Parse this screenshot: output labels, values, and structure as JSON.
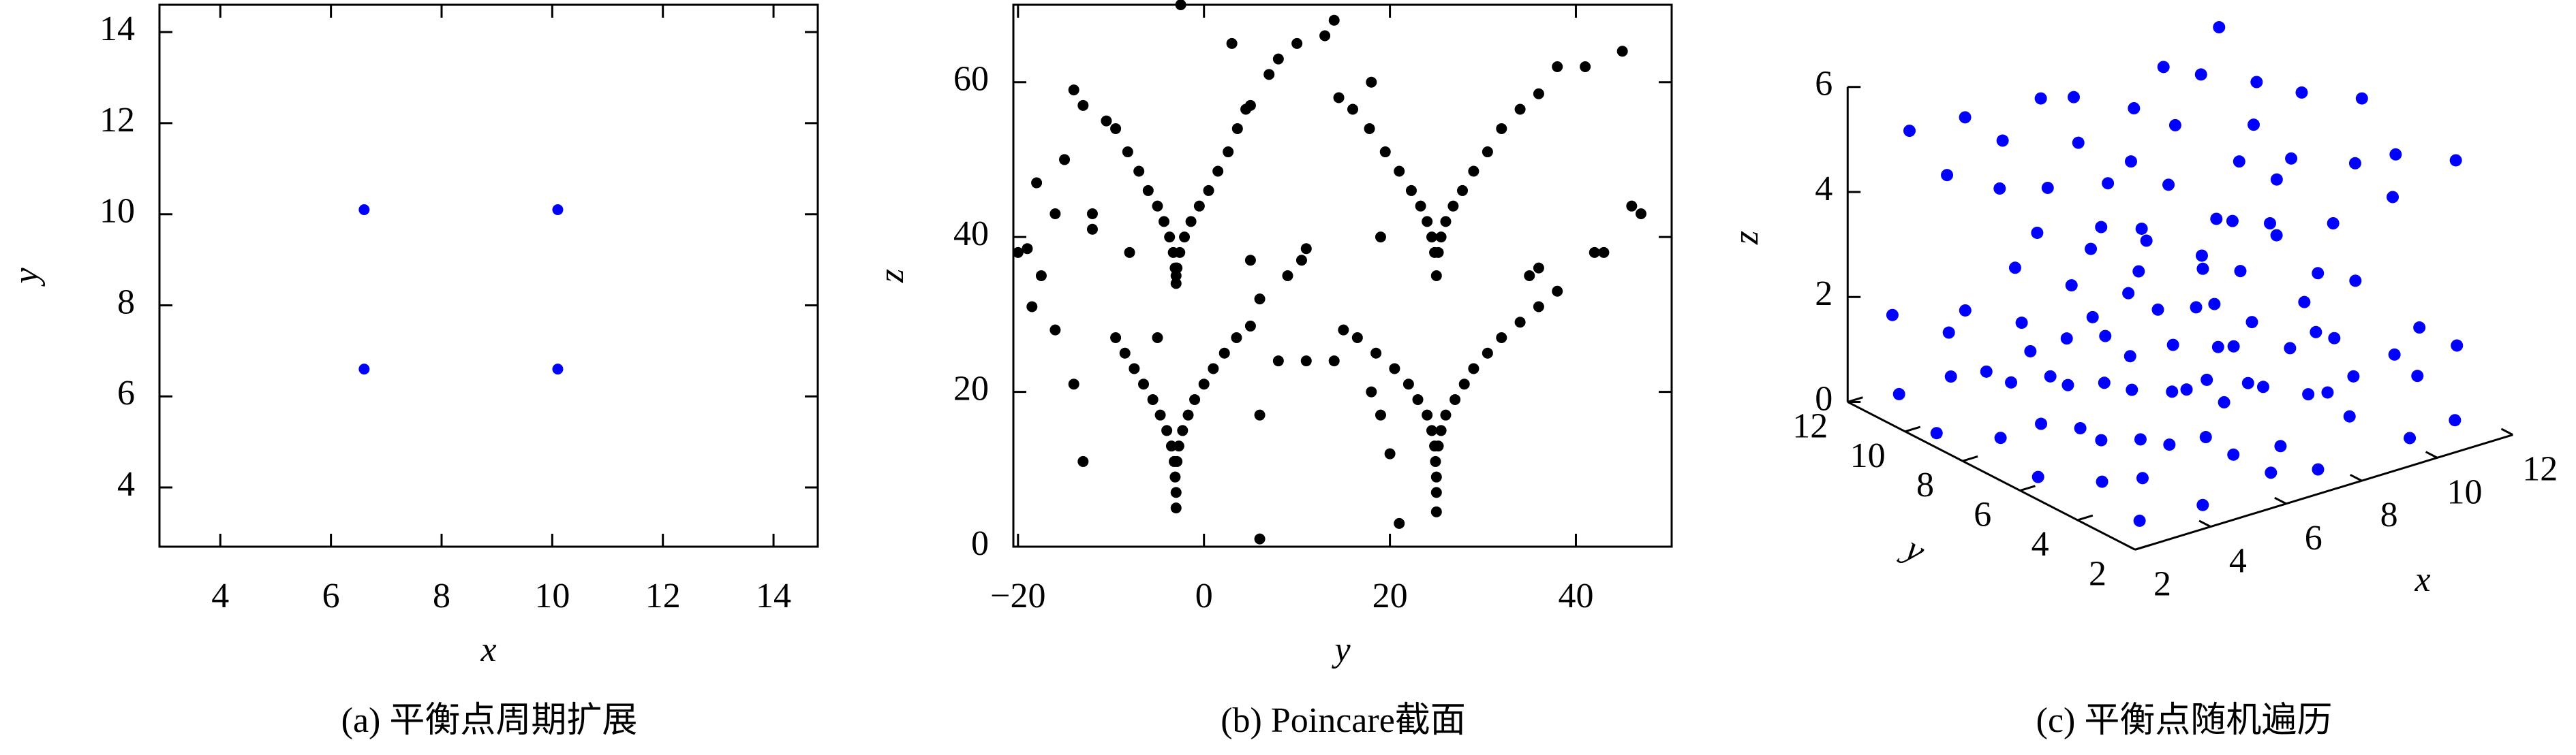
{
  "chart_data": [
    {
      "type": "scatter",
      "caption": "(a) 平衡点周期扩展",
      "xlabel": "x",
      "ylabel": "y",
      "color": "#0000ff",
      "x": [
        6.6,
        10.1,
        6.6,
        10.1
      ],
      "y": [
        10.1,
        10.1,
        6.6,
        6.6
      ],
      "xlim": [
        2.9,
        14.8
      ],
      "ylim": [
        2.7,
        14.6
      ],
      "xticks": [
        4,
        6,
        8,
        10,
        12,
        14
      ],
      "yticks": [
        4,
        6,
        8,
        10,
        12,
        14
      ]
    },
    {
      "type": "scatter",
      "caption": "(b) Poincare截面",
      "xlabel": "y",
      "ylabel": "z",
      "color": "#000000",
      "x": [
        -3,
        -3,
        -3.1,
        -3.3,
        -3.7,
        -4.3,
        -5,
        -6,
        -7,
        -8.2,
        -9.5,
        -10.5,
        -2.9,
        -2.6,
        -2.1,
        -1.4,
        -0.5,
        0.5,
        1.5,
        2.6,
        3.6,
        4.5,
        5,
        -3,
        -3,
        -3.1,
        -3.2,
        -3.5,
        -4,
        -4.7,
        -5.5,
        -6.5,
        -7.5,
        -8.5,
        -9.5,
        -2.9,
        -2.7,
        -2.3,
        -1.7,
        -1,
        0,
        1,
        2.2,
        3.5,
        5,
        25,
        24.8,
        24.5,
        24,
        23.3,
        22.3,
        21,
        19.5,
        17.8,
        16,
        14.5,
        25.2,
        25.5,
        26,
        26.8,
        27.8,
        29,
        30.5,
        32,
        34,
        36,
        25,
        25,
        25,
        24.9,
        24.8,
        24.5,
        24,
        23,
        22,
        20.5,
        18.5,
        16.5,
        15,
        25.2,
        25.5,
        26,
        27,
        28,
        29,
        30.5,
        32,
        34,
        36,
        38,
        -20,
        -19,
        -18.5,
        -18,
        -17.5,
        -16,
        -15,
        -14,
        -13,
        -12,
        -12,
        -8,
        -5,
        -14,
        -13,
        -16,
        -2.5,
        3,
        6,
        6,
        6,
        7,
        8,
        9,
        10,
        10.5,
        11,
        13,
        14,
        18,
        19,
        20,
        19,
        21,
        18,
        35,
        36,
        38,
        41,
        42,
        43,
        45,
        46,
        47,
        8,
        11,
        14,
        5
      ],
      "y": [
        34,
        35,
        36,
        38,
        40,
        42,
        44,
        46,
        48.5,
        51,
        54,
        55,
        36,
        38,
        40,
        42,
        44,
        46,
        48.5,
        51,
        54,
        56.5,
        57,
        5,
        7,
        9,
        11,
        13,
        15,
        17,
        19,
        21,
        23,
        25,
        27,
        11,
        13,
        15,
        17,
        19,
        21,
        23,
        25,
        27,
        28.5,
        35,
        38,
        40,
        42,
        44,
        46,
        48.5,
        51,
        54,
        56.5,
        58,
        38,
        40,
        42,
        44,
        46,
        48.5,
        51,
        54,
        56.5,
        58.5,
        4.5,
        7,
        9,
        11,
        13,
        15,
        17,
        19,
        21,
        23,
        25,
        27,
        28,
        13,
        15,
        17,
        19,
        21,
        23,
        25,
        27,
        29,
        31,
        33,
        38,
        38.5,
        31,
        47,
        35,
        43,
        50,
        59,
        57,
        41,
        43,
        38,
        27,
        21,
        11,
        28,
        70,
        65,
        1,
        17,
        32,
        61,
        63,
        35,
        65,
        37,
        38.5,
        66,
        68,
        60,
        40,
        12,
        17,
        3,
        20,
        35,
        36,
        62,
        62,
        38,
        38,
        64,
        44,
        43,
        24,
        24,
        24,
        37
      ],
      "xlim": [
        -20.5,
        50.3
      ],
      "ylim": [
        0,
        70
      ],
      "xticks": [
        {
          "value": -20,
          "label": "−20"
        },
        0,
        20,
        40
      ],
      "yticks": [
        0,
        20,
        40,
        60
      ]
    },
    {
      "type": "scatter3d",
      "caption": "(c) 平衡点随机遍历",
      "xlabel": "x",
      "ylabel": "y",
      "zlabel": "z",
      "color": "#0000ff",
      "x": [
        2.4,
        4.3,
        5.8,
        7.7,
        9.2,
        11.1,
        2.7,
        4.0,
        6.1,
        7.5,
        9.5,
        10.8,
        2.3,
        4.4,
        5.7,
        7.8,
        9.1,
        11.2,
        2.6,
        4.1,
        6.0,
        7.4,
        9.4,
        10.9,
        2.5,
        4.2,
        5.9,
        7.6,
        9.3,
        11.0,
        2.8,
        4.5,
        6.2,
        7.3,
        9.6,
        11.3,
        2.6,
        4.1,
        6.0,
        7.4,
        9.4,
        10.9,
        2.3,
        4.5,
        5.8,
        7.7,
        9.1,
        11.2,
        2.8,
        4.0,
        6.2,
        7.5,
        9.6,
        10.8,
        2.4,
        4.3,
        5.7,
        7.8,
        9.2,
        11.1,
        2.7,
        4.4,
        6.1,
        7.3,
        9.5,
        11.3,
        2.5,
        4.2,
        5.9,
        7.6,
        9.3,
        11.0,
        2.5,
        4.4,
        5.9,
        7.3,
        9.5,
        11.0,
        2.8,
        4.1,
        6.2,
        7.6,
        9.2,
        11.3,
        2.4,
        4.3,
        5.8,
        7.4,
        9.4,
        10.9,
        2.7,
        4.0,
        6.1,
        7.7,
        9.1,
        11.2,
        2.3,
        4.5,
        5.7,
        7.5,
        9.6,
        10.8,
        2.6,
        4.2,
        6.0,
        7.8,
        9.3,
        11.1
      ],
      "y": [
        2.4,
        2.7,
        2.3,
        2.6,
        2.5,
        2.8,
        4.1,
        4.4,
        4.0,
        4.3,
        4.2,
        4.5,
        5.8,
        6.1,
        5.7,
        6.0,
        5.9,
        6.2,
        7.5,
        7.8,
        7.4,
        7.7,
        7.6,
        7.9,
        9.2,
        9.5,
        9.1,
        9.4,
        9.3,
        9.6,
        10.9,
        11.2,
        10.8,
        11.1,
        11.0,
        11.3,
        2.6,
        2.3,
        2.8,
        2.4,
        2.7,
        2.5,
        4.3,
        4.0,
        4.5,
        4.1,
        4.4,
        4.2,
        6.0,
        5.7,
        6.2,
        5.8,
        6.1,
        5.9,
        7.7,
        7.4,
        7.9,
        7.5,
        7.8,
        7.6,
        9.4,
        9.1,
        9.6,
        9.2,
        9.5,
        9.3,
        11.1,
        10.8,
        11.3,
        10.9,
        11.2,
        11.0,
        2.5,
        2.8,
        2.4,
        2.6,
        2.3,
        2.7,
        4.2,
        4.5,
        4.1,
        4.3,
        4.0,
        4.4,
        5.9,
        6.2,
        5.8,
        6.0,
        5.7,
        6.1,
        7.6,
        7.9,
        7.5,
        7.7,
        7.4,
        7.8,
        9.3,
        9.6,
        9.2,
        9.4,
        9.1,
        9.5,
        11.0,
        11.3,
        10.9,
        11.1,
        10.8,
        11.2
      ],
      "z": [
        5.1,
        4.9,
        5.3,
        4.8,
        5.0,
        5.2,
        5.4,
        5.0,
        4.8,
        5.2,
        5.1,
        4.9,
        4.9,
        5.3,
        5.1,
        5.0,
        4.8,
        5.4,
        5.2,
        4.8,
        5.0,
        5.3,
        4.9,
        5.1,
        5.0,
        5.2,
        4.9,
        5.1,
        5.4,
        4.8,
        5.3,
        5.1,
        5.2,
        4.9,
        5.0,
        5.3,
        1.8,
        1.6,
        2.0,
        1.7,
        1.9,
        1.8,
        1.6,
        1.9,
        1.7,
        2.0,
        1.8,
        1.6,
        2.0,
        1.7,
        1.8,
        1.6,
        1.9,
        2.1,
        1.7,
        2.0,
        1.6,
        1.8,
        2.1,
        1.7,
        1.9,
        1.8,
        2.0,
        1.7,
        1.6,
        1.9,
        1.8,
        1.6,
        1.9,
        2.0,
        1.7,
        1.8,
        0.3,
        0.1,
        0.5,
        0.2,
        0.4,
        0.3,
        0.5,
        0.2,
        0.3,
        0.1,
        0.4,
        0.6,
        0.2,
        0.4,
        0.1,
        0.5,
        0.3,
        0.2,
        0.4,
        0.3,
        0.6,
        0.2,
        0.1,
        0.5,
        0.1,
        0.5,
        0.3,
        0.4,
        0.2,
        0.3,
        0.3,
        0.2,
        0.4,
        0.6,
        0.5,
        0.1
      ],
      "xlim": [
        2,
        12
      ],
      "ylim": [
        2,
        12
      ],
      "zlim": [
        0,
        6
      ],
      "xticks": [
        2,
        4,
        6,
        8,
        10,
        12
      ],
      "yticks": [
        2,
        4,
        6,
        8,
        10,
        12
      ],
      "zticks": [
        0,
        2,
        4,
        6
      ]
    }
  ]
}
